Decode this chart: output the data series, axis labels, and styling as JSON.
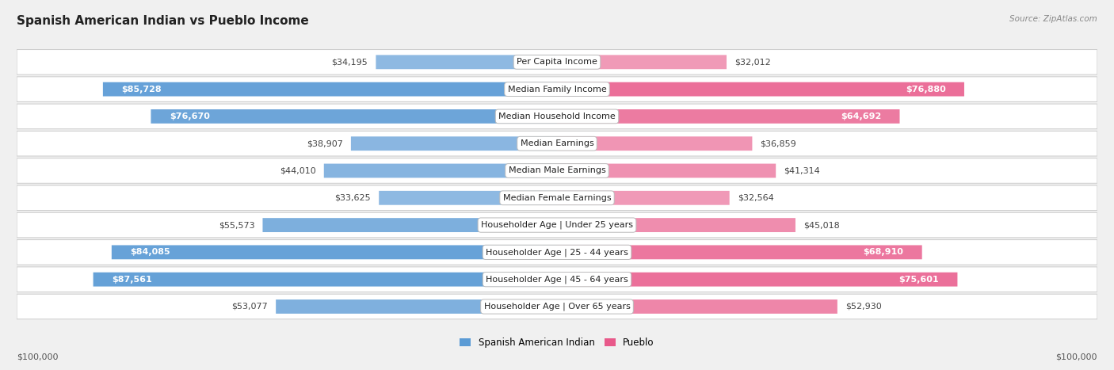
{
  "title": "Spanish American Indian vs Pueblo Income",
  "source": "Source: ZipAtlas.com",
  "categories": [
    "Per Capita Income",
    "Median Family Income",
    "Median Household Income",
    "Median Earnings",
    "Median Male Earnings",
    "Median Female Earnings",
    "Householder Age | Under 25 years",
    "Householder Age | 25 - 44 years",
    "Householder Age | 45 - 64 years",
    "Householder Age | Over 65 years"
  ],
  "left_values": [
    34195,
    85728,
    76670,
    38907,
    44010,
    33625,
    55573,
    84085,
    87561,
    53077
  ],
  "right_values": [
    32012,
    76880,
    64692,
    36859,
    41314,
    32564,
    45018,
    68910,
    75601,
    52930
  ],
  "left_labels": [
    "$34,195",
    "$85,728",
    "$76,670",
    "$38,907",
    "$44,010",
    "$33,625",
    "$55,573",
    "$84,085",
    "$87,561",
    "$53,077"
  ],
  "right_labels": [
    "$32,012",
    "$76,880",
    "$64,692",
    "$36,859",
    "$41,314",
    "$32,564",
    "$45,018",
    "$68,910",
    "$75,601",
    "$52,930"
  ],
  "max_value": 100000,
  "left_color_light": "#a8c8e8",
  "left_color_dark": "#5b9bd5",
  "right_color_light": "#f4b8cc",
  "right_color_dark": "#e8598a",
  "background_color": "#f0f0f0",
  "row_bg_color": "#ffffff",
  "row_border_color": "#cccccc",
  "legend_left": "Spanish American Indian",
  "legend_right": "Pueblo",
  "xlabel_left": "$100,000",
  "xlabel_right": "$100,000",
  "title_fontsize": 11,
  "label_fontsize": 8,
  "category_fontsize": 8,
  "inside_label_threshold": 60000
}
